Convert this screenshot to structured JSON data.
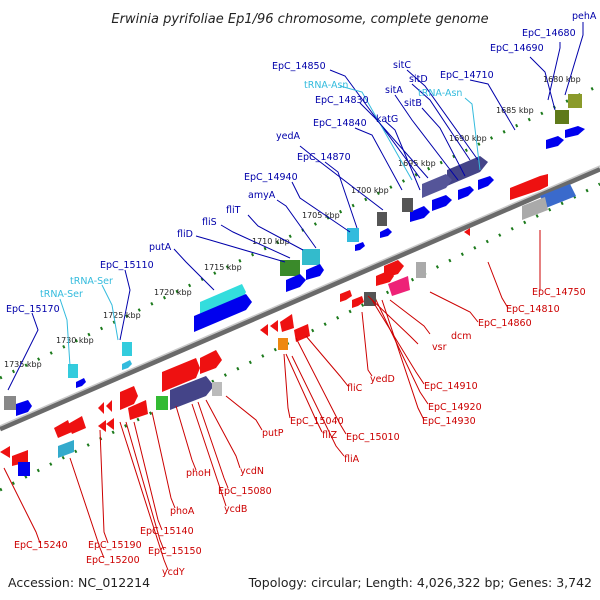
{
  "title": "Erwinia pyrifoliae Ep1/96 chromosome, complete genome",
  "footer": {
    "accession": "Accession: NC_012214",
    "summary": "Topology: circular; Length: 4,026,322 bp; Genes: 3,742"
  },
  "colors": {
    "forward_cds": "#0000ee",
    "reverse_cds": "#ee1111",
    "trna": "#33bbdd",
    "backbone": "#808080",
    "tick": "#1c7a1c"
  },
  "ticks": [
    "1680 kbp",
    "1685 kbp",
    "1690 kbp",
    "1695 kbp",
    "1700 kbp",
    "1705 kbp",
    "1710 kbp",
    "1715 kbp",
    "1720 kbp",
    "1725 kbp",
    "1730 kbp",
    "1735 kbp"
  ],
  "top_labels": [
    "pehA",
    "EpC_14680",
    "EpC_14690",
    "EpC_14710",
    "sitC",
    "sitD",
    "EpC_14850",
    "tRNA-Asn",
    "tRNA-Asn",
    "sitA",
    "EpC_14830",
    "sitB",
    "EpC_14840",
    "katG",
    "yedA",
    "EpC_14870",
    "EpC_14940",
    "amyA",
    "fliT",
    "fliS",
    "fliD",
    "putA",
    "EpC_15110",
    "tRNA-Ser",
    "tRNA-Ser",
    "EpC_15170"
  ],
  "bottom_labels": [
    "EpC_14750",
    "EpC_14810",
    "EpC_14860",
    "dcm",
    "vsr",
    "yedD",
    "EpC_14910",
    "EpC_14920",
    "EpC_14930",
    "fliC",
    "EpC_15010",
    "EpC_15040",
    "fliZ",
    "fliA",
    "putP",
    "ycdN",
    "EpC_15080",
    "ycdB",
    "phoH",
    "phoA",
    "EpC_15140",
    "EpC_15150",
    "ycdY",
    "EpC_15190",
    "EpC_15200",
    "EpC_15240"
  ]
}
